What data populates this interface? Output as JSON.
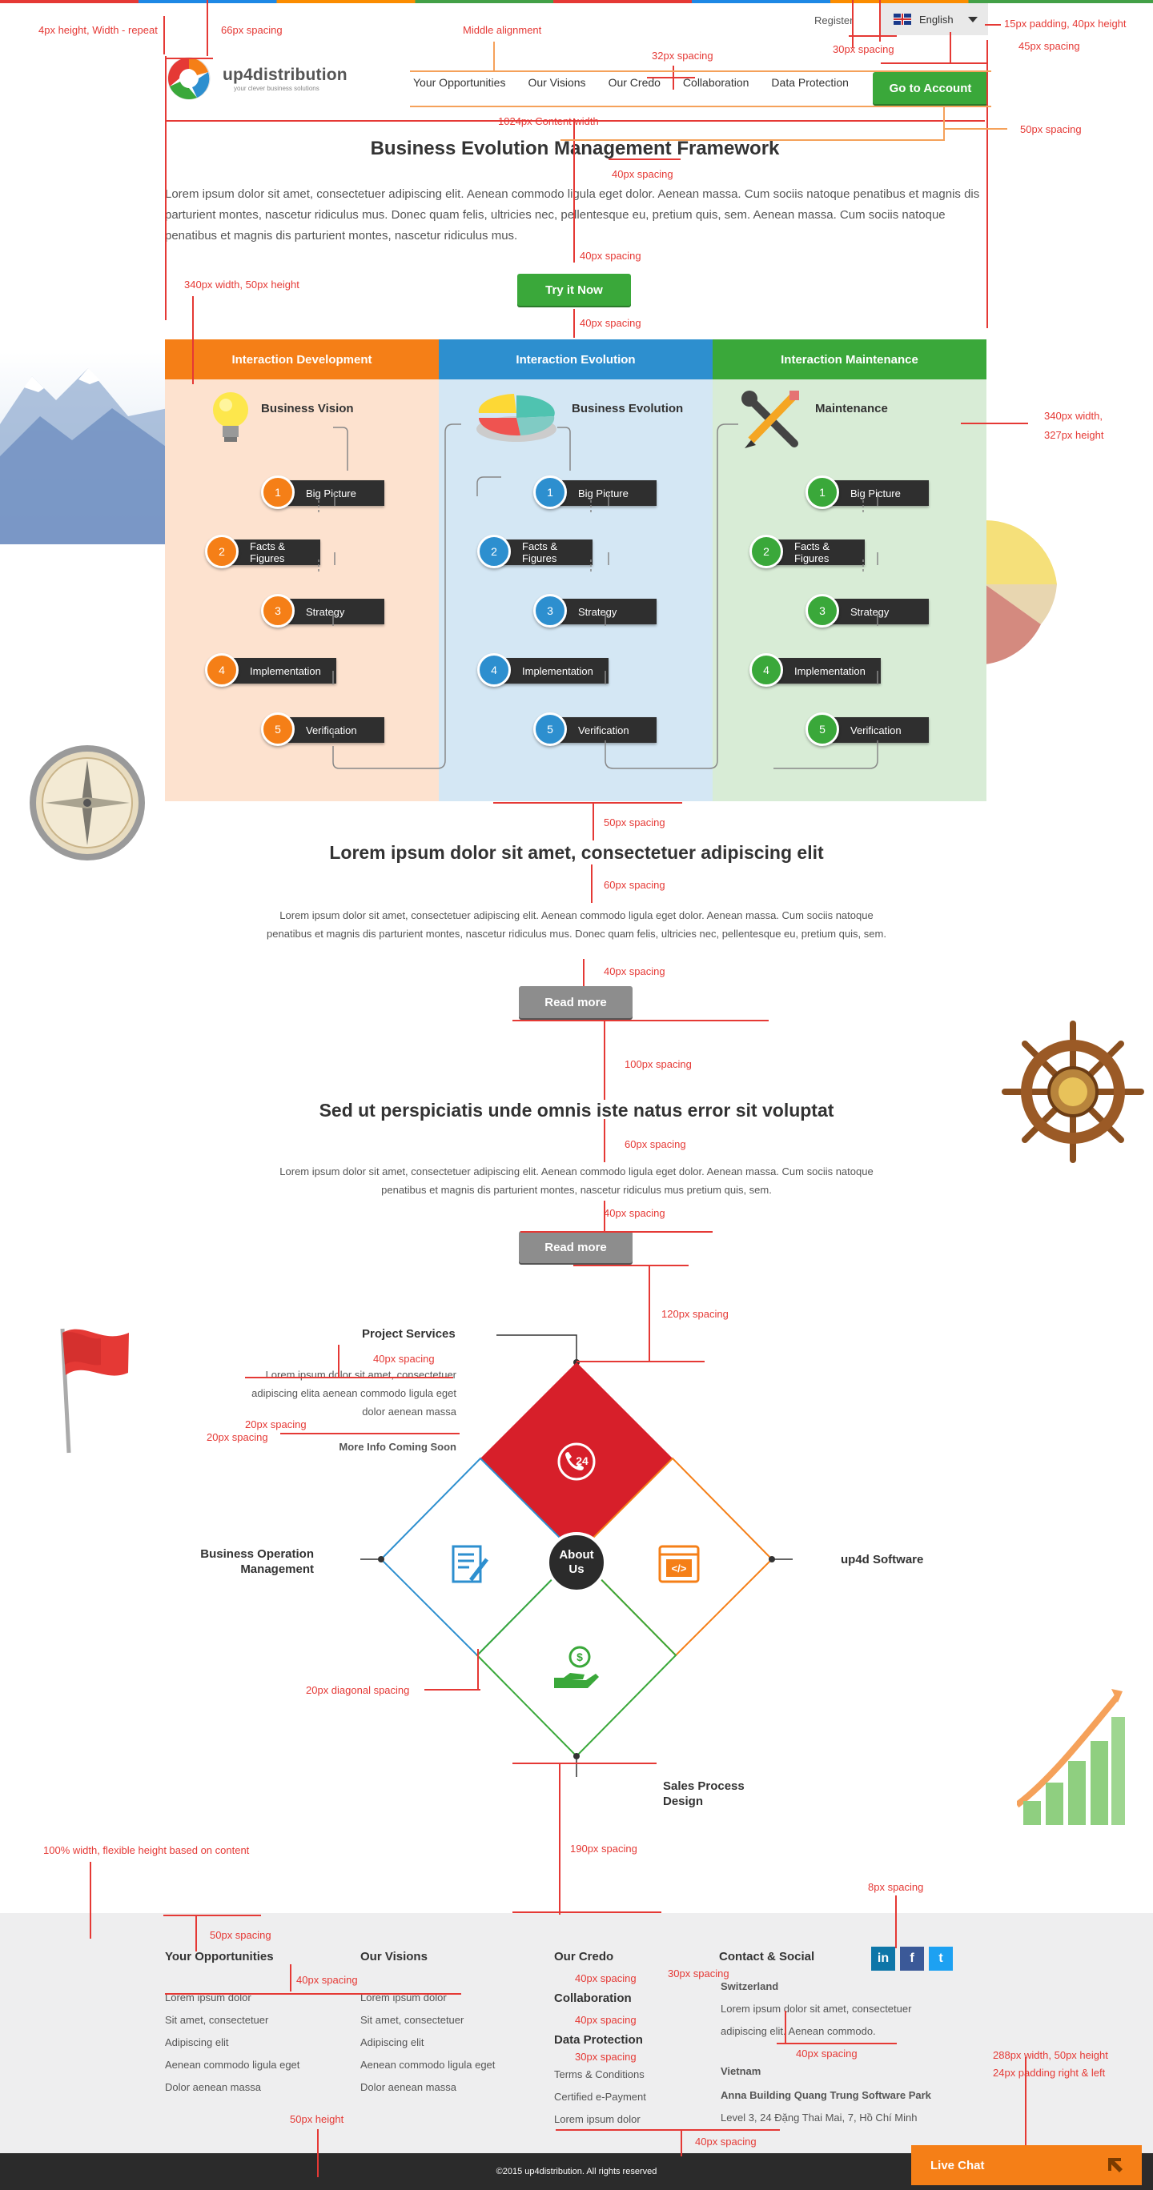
{
  "header": {
    "register": "Register",
    "language": "English",
    "logo_name": "up4distribution",
    "logo_tagline": "your clever business solutions",
    "nav": [
      "Your Opportunities",
      "Our Visions",
      "Our Credo",
      "Collaboration",
      "Data Protection"
    ],
    "cta": "Go to Account"
  },
  "hero": {
    "title": "Business Evolution Management Framework",
    "text": "Lorem ipsum dolor sit amet, consectetuer adipiscing elit. Aenean commodo ligula eget dolor. Aenean massa. Cum sociis natoque penatibus et magnis dis parturient montes, nascetur ridiculus mus. Donec quam felis, ultricies nec, pellentesque eu, pretium quis, sem. Aenean massa. Cum sociis natoque penatibus et magnis dis parturient montes, nascetur ridiculus mus.",
    "button": "Try it Now"
  },
  "columns": [
    {
      "header": "Interaction Development",
      "title": "Business Vision",
      "color": "#f57f17",
      "bg": "#fde2cf",
      "steps": [
        {
          "n": "1",
          "label": "Big Picture"
        },
        {
          "n": "2",
          "label": "Facts & Figures"
        },
        {
          "n": "3",
          "label": "Strategy"
        },
        {
          "n": "4",
          "label": "Implementation"
        },
        {
          "n": "5",
          "label": "Verification"
        }
      ]
    },
    {
      "header": "Interaction Evolution",
      "title": "Business Evolution",
      "color": "#2d8fcf",
      "bg": "#d4e7f4",
      "steps": [
        {
          "n": "1",
          "label": "Big Picture"
        },
        {
          "n": "2",
          "label": "Facts & Figures"
        },
        {
          "n": "3",
          "label": "Strategy"
        },
        {
          "n": "4",
          "label": "Implementation"
        },
        {
          "n": "5",
          "label": "Verification"
        }
      ]
    },
    {
      "header": "Interaction Maintenance",
      "title": "Maintenance",
      "color": "#3aa83a",
      "bg": "#d8ecd6",
      "steps": [
        {
          "n": "1",
          "label": "Big Picture"
        },
        {
          "n": "2",
          "label": "Facts & Figures"
        },
        {
          "n": "3",
          "label": "Strategy"
        },
        {
          "n": "4",
          "label": "Implementation"
        },
        {
          "n": "5",
          "label": "Verification"
        }
      ]
    }
  ],
  "section1": {
    "title": "Lorem ipsum dolor sit amet, consectetuer adipiscing elit",
    "text": "Lorem ipsum dolor sit amet, consectetuer adipiscing elit. Aenean commodo ligula eget dolor. Aenean massa. Cum sociis natoque penatibus et magnis dis parturient montes, nascetur ridiculus mus. Donec quam felis, ultricies nec, pellentesque eu, pretium quis, sem.",
    "button": "Read more"
  },
  "section2": {
    "title": "Sed ut perspiciatis unde omnis iste natus error sit voluptat",
    "text": "Lorem ipsum dolor sit amet, consectetuer adipiscing elit. Aenean commodo ligula eget dolor. Aenean massa. Cum sociis natoque penatibus et magnis dis parturient montes, nascetur ridiculus mus pretium quis, sem.",
    "button": "Read more"
  },
  "services": {
    "project": "Project Services",
    "project_desc": "Lorem ipsum dolor sit amet, consectetuer adipiscing elita aenean commodo ligula eget dolor aenean massa",
    "more": "More Info Coming Soon",
    "operation_1": "Business Operation",
    "operation_2": "Management",
    "software": "up4d Software",
    "sales_1": "Sales Process",
    "sales_2": "Design",
    "about_1": "About",
    "about_2": "Us",
    "hours": "24"
  },
  "footer": {
    "opportunities": {
      "title": "Your Opportunities",
      "items": [
        "Lorem ipsum dolor",
        "Sit amet, consectetuer",
        "Adipiscing elit",
        "Aenean commodo ligula eget",
        "Dolor aenean massa"
      ]
    },
    "visions": {
      "title": "Our Visions",
      "items": [
        "Lorem ipsum dolor",
        "Sit amet, consectetuer",
        "Adipiscing elit",
        "Aenean commodo ligula eget",
        "Dolor aenean massa"
      ]
    },
    "credo": "Our Credo",
    "collaboration": "Collaboration",
    "data_protection": "Data Protection",
    "dp_items": [
      "Terms & Conditions",
      "Certified e-Payment",
      "Lorem ipsum dolor"
    ],
    "contact": "Contact & Social",
    "switzerland": "Switzerland",
    "ch_text_1": "Lorem ipsum dolor sit amet, consectetuer",
    "ch_text_2": "adipiscing elit. Aenean commodo.",
    "vietnam": "Vietnam",
    "vn_1": "Anna Building Quang Trung Software Park",
    "vn_2": "Level 3, 24 Đặng Thai Mai, 7, Hồ Chí Minh",
    "social": [
      "in",
      "f",
      "t"
    ],
    "copyright": "©2015 up4distribution. All rights reserved",
    "livechat": "Live Chat"
  },
  "annotations": {
    "a1": "4px height, Width - repeat",
    "a2": "66px spacing",
    "a3": "Middle alignment",
    "a4": "32px spacing",
    "a5": "30px spacing",
    "a6": "15px padding, 40px height",
    "a7": "45px spacing",
    "a8": "1024px Content width",
    "a9": "50px spacing",
    "a10": "40px spacing",
    "a11": "40px spacing",
    "a12": "40px spacing",
    "a13": "340px width, 50px height",
    "a14": "340px width,",
    "a15": "327px height",
    "a16": "50px spacing",
    "a17": "60px spacing",
    "a18": "40px spacing",
    "a19": "100px spacing",
    "a20": "60px spacing",
    "a21": "40px spacing",
    "a22": "120px spacing",
    "a23": "40px spacing",
    "a24": "20px spacing",
    "a25": "20px spacing",
    "a26": "20px diagonal spacing",
    "a27": "100% width, flexible height based on content",
    "a28": "190px spacing",
    "a29": "8px spacing",
    "a30": "50px spacing",
    "a31": "40px spacing",
    "a32": "40px spacing",
    "a33": "30px spacing",
    "a34": "40px spacing",
    "a35": "30px spacing",
    "a36": "40px spacing",
    "a37": "288px width, 50px height",
    "a38": "24px padding right & left",
    "a39": "50px height",
    "a40": "40px spacing"
  }
}
